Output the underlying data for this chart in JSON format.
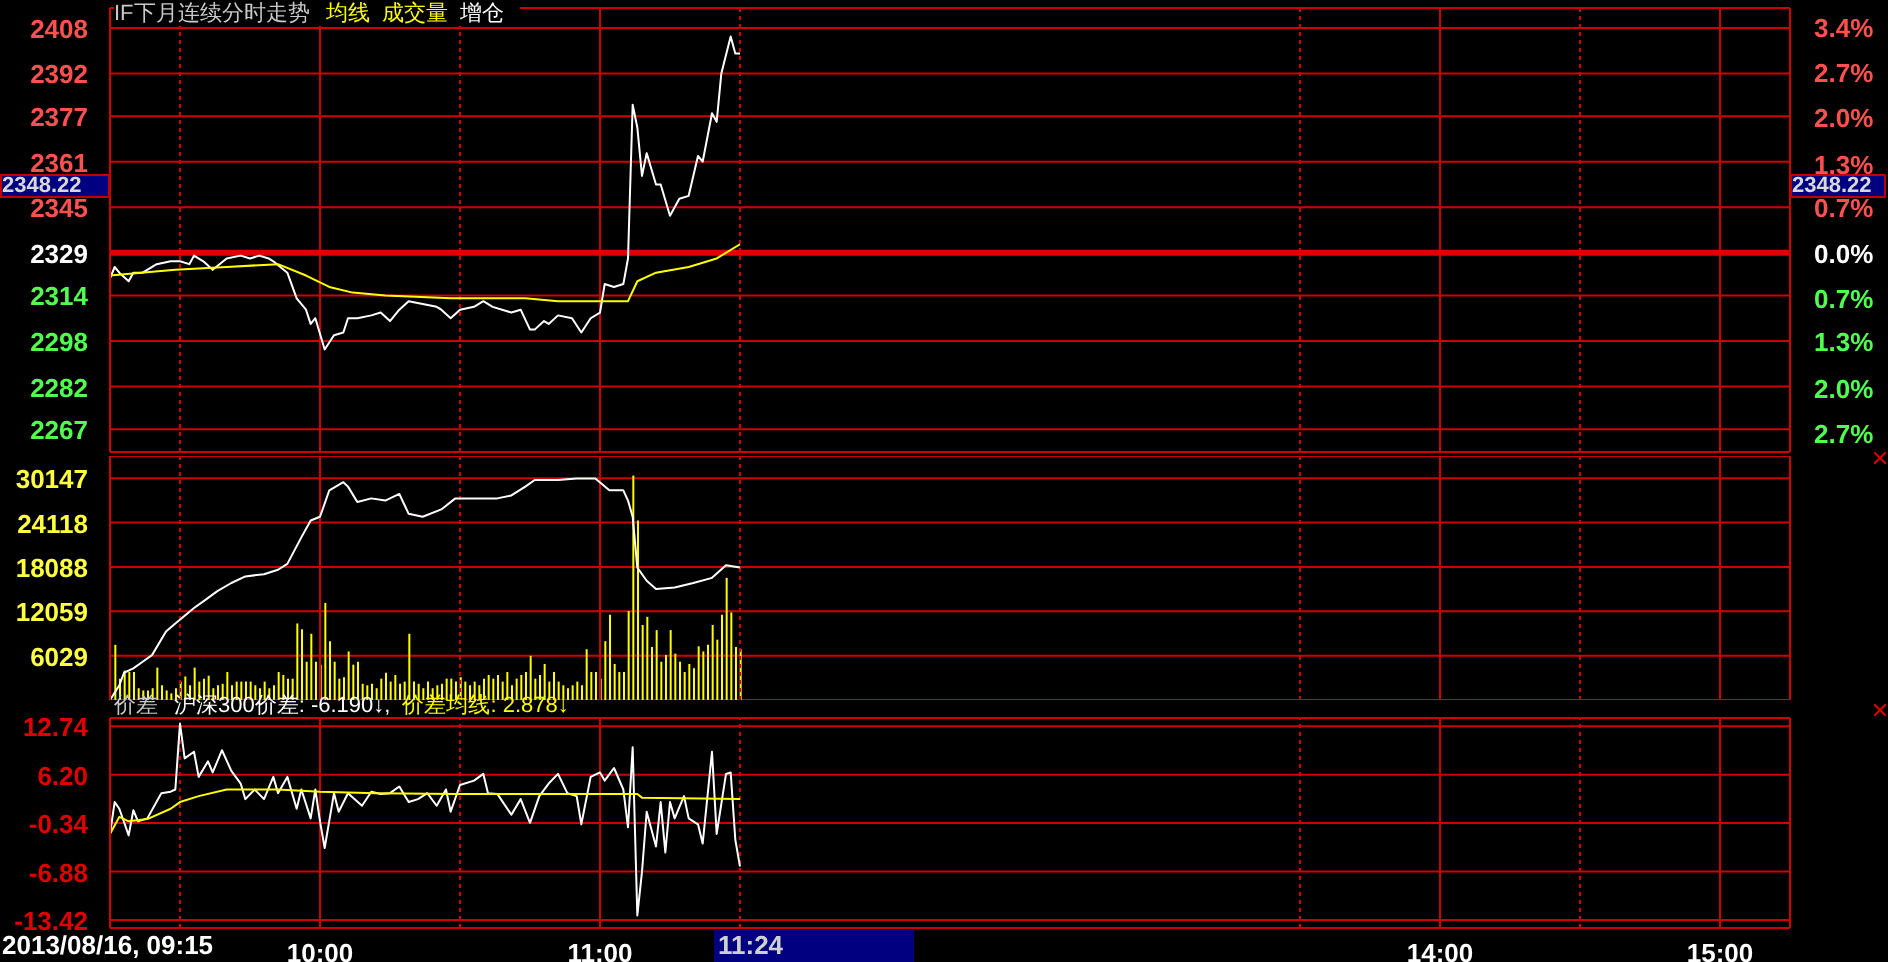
{
  "chart_data": [
    {
      "type": "line",
      "title": "IF下月连续分时走势",
      "xlim": [
        "2013-08-16T09:15",
        "2013-08-16T15:15"
      ],
      "ylim": [
        2259,
        2415
      ],
      "yticks": [
        2408,
        2392,
        2377,
        2361,
        2345,
        2329,
        2314,
        2298,
        2282,
        2267
      ],
      "y2lim": [
        -3.01,
        3.69
      ],
      "y2ticks": [
        {
          "value": 3.4,
          "label": "3.4%"
        },
        {
          "value": 2.72,
          "label": "2.7%"
        },
        {
          "value": 2.04,
          "label": "2.0%"
        },
        {
          "value": 1.34,
          "label": "1.3%"
        },
        {
          "value": 0.68,
          "label": "0.7%"
        },
        {
          "value": 0,
          "label": "0.0%"
        },
        {
          "value": -0.68,
          "label": "0.7%"
        },
        {
          "value": -1.34,
          "label": "1.3%"
        },
        {
          "value": -2.04,
          "label": "2.0%"
        },
        {
          "value": -2.72,
          "label": "2.7%"
        }
      ],
      "ref_lines": [
        {
          "axis": "y",
          "value": 2329,
          "color": "#e00000"
        }
      ],
      "annotations": [
        "2348.22"
      ],
      "grid": true,
      "legend": "top left",
      "tick_labels": "y",
      "series": [
        {
          "color": "#ffffff",
          "x": [
            "2013-08-16T09:15",
            "2013-08-16T09:16",
            "2013-08-16T09:17",
            "2013-08-16T09:19",
            "2013-08-16T09:20",
            "2013-08-16T09:22",
            "2013-08-16T09:25",
            "2013-08-16T09:28",
            "2013-08-16T09:30",
            "2013-08-16T09:32",
            "2013-08-16T09:33",
            "2013-08-16T09:35",
            "2013-08-16T09:37",
            "2013-08-16T09:40",
            "2013-08-16T09:43",
            "2013-08-16T09:45",
            "2013-08-16T09:47",
            "2013-08-16T09:49",
            "2013-08-16T09:50",
            "2013-08-16T09:53",
            "2013-08-16T09:55",
            "2013-08-16T09:57",
            "2013-08-16T09:58",
            "2013-08-16T09:59",
            "2013-08-16T10:01",
            "2013-08-16T10:03",
            "2013-08-16T10:05",
            "2013-08-16T10:06",
            "2013-08-16T10:08",
            "2013-08-16T10:11",
            "2013-08-16T10:13",
            "2013-08-16T10:15",
            "2013-08-16T10:17",
            "2013-08-16T10:19",
            "2013-08-16T10:22",
            "2013-08-16T10:25",
            "2013-08-16T10:26",
            "2013-08-16T10:28",
            "2013-08-16T10:30",
            "2013-08-16T10:33",
            "2013-08-16T10:35",
            "2013-08-16T10:37",
            "2013-08-16T10:41",
            "2013-08-16T10:43",
            "2013-08-16T10:45",
            "2013-08-16T10:46",
            "2013-08-16T10:48",
            "2013-08-16T10:49",
            "2013-08-16T10:51",
            "2013-08-16T10:54",
            "2013-08-16T10:56",
            "2013-08-16T10:58",
            "2013-08-16T11:00",
            "2013-08-16T11:01",
            "2013-08-16T11:03",
            "2013-08-16T11:05",
            "2013-08-16T11:06",
            "2013-08-16T11:07",
            "2013-08-16T11:08",
            "2013-08-16T11:09",
            "2013-08-16T11:10",
            "2013-08-16T11:12",
            "2013-08-16T11:13",
            "2013-08-16T11:15",
            "2013-08-16T11:17",
            "2013-08-16T11:19",
            "2013-08-16T11:21",
            "2013-08-16T11:22",
            "2013-08-16T11:24",
            "2013-08-16T11:25",
            "2013-08-16T11:26",
            "2013-08-16T11:28",
            "2013-08-16T11:29",
            "2013-08-16T11:30"
          ],
          "values": [
            2320,
            2324,
            2322,
            2319,
            2322,
            2322,
            2325,
            2326,
            2326,
            2325,
            2328,
            2326,
            2323,
            2327,
            2328,
            2327,
            2328,
            2327,
            2326,
            2322,
            2313,
            2309,
            2304,
            2306,
            2295,
            2300,
            2301,
            2306,
            2306,
            2307,
            2308,
            2305,
            2309,
            2312,
            2311,
            2310,
            2309,
            2306,
            2309,
            2310,
            2312,
            2310,
            2308,
            2309,
            2302,
            2302,
            2305,
            2304,
            2307,
            2306,
            2301,
            2306,
            2308,
            2318,
            2317,
            2318,
            2327,
            2381,
            2373,
            2356,
            2364,
            2353,
            2353,
            2342,
            2348,
            2349,
            2363,
            2361,
            2378,
            2375,
            2392,
            2405,
            2399,
            2399
          ]
        },
        {
          "name": "均线",
          "color": "#ffff00",
          "x": [
            "2013-08-16T09:15",
            "2013-08-16T09:29",
            "2013-08-16T09:40",
            "2013-08-16T09:51",
            "2013-08-16T09:57",
            "2013-08-16T10:02",
            "2013-08-16T10:07",
            "2013-08-16T10:14",
            "2013-08-16T10:28",
            "2013-08-16T10:44",
            "2013-08-16T10:51",
            "2013-08-16T11:06",
            "2013-08-16T11:08",
            "2013-08-16T11:12",
            "2013-08-16T11:19",
            "2013-08-16T11:25",
            "2013-08-16T11:30"
          ],
          "values": [
            2321,
            2323,
            2324,
            2325,
            2321,
            2317,
            2315,
            2314,
            2313,
            2313,
            2312,
            2312,
            2319,
            2322,
            2324,
            2327,
            2332
          ]
        }
      ]
    },
    {
      "type": "bar",
      "xlim": [
        "2013-08-16T09:15",
        "2013-08-16T15:15"
      ],
      "ylim": [
        0,
        33160
      ],
      "yticks": [
        30147,
        24118,
        18088,
        12059,
        6029
      ],
      "grid": true,
      "legend": "top left",
      "tick_labels": "y",
      "x": [
        "2013-08-16T09:16",
        "2013-08-16T09:17",
        "2013-08-16T09:18",
        "2013-08-16T09:19",
        "2013-08-16T09:20",
        "2013-08-16T09:21",
        "2013-08-16T09:22",
        "2013-08-16T09:23",
        "2013-08-16T09:24",
        "2013-08-16T09:25",
        "2013-08-16T09:26",
        "2013-08-16T09:27",
        "2013-08-16T09:28",
        "2013-08-16T09:29",
        "2013-08-16T09:30",
        "2013-08-16T09:31",
        "2013-08-16T09:32",
        "2013-08-16T09:33",
        "2013-08-16T09:34",
        "2013-08-16T09:35",
        "2013-08-16T09:36",
        "2013-08-16T09:37",
        "2013-08-16T09:38",
        "2013-08-16T09:39",
        "2013-08-16T09:40",
        "2013-08-16T09:41",
        "2013-08-16T09:42",
        "2013-08-16T09:43",
        "2013-08-16T09:44",
        "2013-08-16T09:45",
        "2013-08-16T09:46",
        "2013-08-16T09:47",
        "2013-08-16T09:48",
        "2013-08-16T09:49",
        "2013-08-16T09:50",
        "2013-08-16T09:51",
        "2013-08-16T09:52",
        "2013-08-16T09:53",
        "2013-08-16T09:54",
        "2013-08-16T09:55",
        "2013-08-16T09:56",
        "2013-08-16T09:57",
        "2013-08-16T09:58",
        "2013-08-16T09:59",
        "2013-08-16T10:00",
        "2013-08-16T10:01",
        "2013-08-16T10:02",
        "2013-08-16T10:03",
        "2013-08-16T10:04",
        "2013-08-16T10:05",
        "2013-08-16T10:06",
        "2013-08-16T10:07",
        "2013-08-16T10:08",
        "2013-08-16T10:09",
        "2013-08-16T10:10",
        "2013-08-16T10:11",
        "2013-08-16T10:12",
        "2013-08-16T10:13",
        "2013-08-16T10:14",
        "2013-08-16T10:15",
        "2013-08-16T10:16",
        "2013-08-16T10:17",
        "2013-08-16T10:18",
        "2013-08-16T10:19",
        "2013-08-16T10:20",
        "2013-08-16T10:21",
        "2013-08-16T10:22",
        "2013-08-16T10:23",
        "2013-08-16T10:24",
        "2013-08-16T10:25",
        "2013-08-16T10:26",
        "2013-08-16T10:27",
        "2013-08-16T10:28",
        "2013-08-16T10:29",
        "2013-08-16T10:30",
        "2013-08-16T10:31",
        "2013-08-16T10:32",
        "2013-08-16T10:33",
        "2013-08-16T10:34",
        "2013-08-16T10:35",
        "2013-08-16T10:36",
        "2013-08-16T10:37",
        "2013-08-16T10:38",
        "2013-08-16T10:39",
        "2013-08-16T10:40",
        "2013-08-16T10:41",
        "2013-08-16T10:42",
        "2013-08-16T10:43",
        "2013-08-16T10:44",
        "2013-08-16T10:45",
        "2013-08-16T10:46",
        "2013-08-16T10:47",
        "2013-08-16T10:48",
        "2013-08-16T10:49",
        "2013-08-16T10:50",
        "2013-08-16T10:51",
        "2013-08-16T10:52",
        "2013-08-16T10:53",
        "2013-08-16T10:54",
        "2013-08-16T10:55",
        "2013-08-16T10:56",
        "2013-08-16T10:57",
        "2013-08-16T10:58",
        "2013-08-16T10:59",
        "2013-08-16T11:00",
        "2013-08-16T11:01",
        "2013-08-16T11:02",
        "2013-08-16T11:03",
        "2013-08-16T11:04",
        "2013-08-16T11:05",
        "2013-08-16T11:06",
        "2013-08-16T11:07",
        "2013-08-16T11:08",
        "2013-08-16T11:09",
        "2013-08-16T11:10",
        "2013-08-16T11:11",
        "2013-08-16T11:12",
        "2013-08-16T11:13",
        "2013-08-16T11:14",
        "2013-08-16T11:15",
        "2013-08-16T11:16",
        "2013-08-16T11:17",
        "2013-08-16T11:18",
        "2013-08-16T11:19",
        "2013-08-16T11:20",
        "2013-08-16T11:21",
        "2013-08-16T11:22",
        "2013-08-16T11:23",
        "2013-08-16T11:24",
        "2013-08-16T11:25",
        "2013-08-16T11:26",
        "2013-08-16T11:27",
        "2013-08-16T11:28",
        "2013-08-16T11:29",
        "2013-08-16T11:30"
      ],
      "series": [
        {
          "name": "成交量",
          "color": "#ffff00",
          "values": [
            7500,
            2900,
            4000,
            3800,
            3800,
            1600,
            1300,
            1300,
            1600,
            4400,
            2000,
            1300,
            900,
            1600,
            2500,
            3200,
            2000,
            4400,
            2500,
            2900,
            3300,
            1600,
            2000,
            2200,
            3800,
            2000,
            2500,
            2500,
            2500,
            2500,
            2000,
            1600,
            2500,
            1600,
            2000,
            3800,
            3400,
            2900,
            2900,
            10400,
            9600,
            5200,
            9000,
            5200,
            4800,
            13200,
            8000,
            5200,
            2900,
            3100,
            6600,
            4800,
            5200,
            2200,
            2000,
            2200,
            1600,
            2900,
            3700,
            2500,
            3400,
            2200,
            2500,
            9000,
            2500,
            2200,
            1600,
            2500,
            1600,
            2000,
            2200,
            2900,
            2900,
            2500,
            3100,
            2500,
            2000,
            2500,
            2000,
            2900,
            3400,
            2900,
            3400,
            2500,
            3800,
            2000,
            2900,
            3400,
            3800,
            6000,
            2900,
            3400,
            4900,
            2500,
            3800,
            2500,
            2000,
            1600,
            2000,
            2500,
            2000,
            6900,
            3800,
            3800,
            2900,
            8000,
            11600,
            4900,
            3800,
            3800,
            12100,
            30500,
            24400,
            10200,
            11300,
            7200,
            9500,
            5200,
            6100,
            9500,
            6300,
            5200,
            3800,
            4900,
            4300,
            7300,
            6600,
            7500,
            10200,
            8200,
            11600,
            16600,
            11900,
            7200,
            6900
          ]
        },
        {
          "name": "增仓",
          "type": "line",
          "color": "#ffffff",
          "x": [
            "2013-08-16T09:15",
            "2013-08-16T09:17",
            "2013-08-16T09:18",
            "2013-08-16T09:20",
            "2013-08-16T09:22",
            "2013-08-16T09:24",
            "2013-08-16T09:27",
            "2013-08-16T09:29",
            "2013-08-16T09:33",
            "2013-08-16T09:35",
            "2013-08-16T09:38",
            "2013-08-16T09:41",
            "2013-08-16T09:44",
            "2013-08-16T09:48",
            "2013-08-16T09:51",
            "2013-08-16T09:53",
            "2013-08-16T09:56",
            "2013-08-16T09:58",
            "2013-08-16T10:00",
            "2013-08-16T10:02",
            "2013-08-16T10:05",
            "2013-08-16T10:06",
            "2013-08-16T10:08",
            "2013-08-16T10:11",
            "2013-08-16T10:14",
            "2013-08-16T10:17",
            "2013-08-16T10:19",
            "2013-08-16T10:22",
            "2013-08-16T10:26",
            "2013-08-16T10:29",
            "2013-08-16T10:34",
            "2013-08-16T10:38",
            "2013-08-16T10:41",
            "2013-08-16T10:44",
            "2013-08-16T10:46",
            "2013-08-16T10:51",
            "2013-08-16T10:55",
            "2013-08-16T10:59",
            "2013-08-16T11:02",
            "2013-08-16T11:05",
            "2013-08-16T11:06",
            "2013-08-16T11:07",
            "2013-08-16T11:08",
            "2013-08-16T11:10",
            "2013-08-16T11:12",
            "2013-08-16T11:16",
            "2013-08-16T11:20",
            "2013-08-16T11:24",
            "2013-08-16T11:27",
            "2013-08-16T11:30"
          ],
          "values": [
            0,
            2000,
            3700,
            4300,
            5200,
            6100,
            9300,
            10400,
            12500,
            13400,
            14800,
            15900,
            16800,
            17100,
            17700,
            18500,
            22100,
            24400,
            24900,
            28500,
            29600,
            29000,
            26900,
            27400,
            27100,
            28000,
            25300,
            24900,
            25900,
            27400,
            27400,
            27400,
            27800,
            29000,
            29900,
            29900,
            30100,
            30100,
            28500,
            28500,
            27100,
            24900,
            18000,
            16200,
            15100,
            15300,
            15900,
            16600,
            18300,
            18000
          ]
        }
      ]
    },
    {
      "type": "line",
      "title": "价差",
      "xlim": [
        "2013-08-16T09:15",
        "2013-08-16T15:15"
      ],
      "xticks": [
        {
          "value": "2013-08-16T09:15",
          "label": null
        },
        {
          "value": "2013-08-16T09:30",
          "label": null
        },
        {
          "value": "2013-08-16T10:00",
          "label": "10:00"
        },
        {
          "value": "2013-08-16T10:30",
          "label": null
        },
        {
          "value": "2013-08-16T11:00",
          "label": "11:00"
        },
        {
          "value": "2013-08-16T11:30",
          "label": null
        },
        {
          "value": "2013-08-16T13:30",
          "label": null
        },
        {
          "value": "2013-08-16T14:00",
          "label": "14:00"
        },
        {
          "value": "2013-08-16T14:30",
          "label": null
        },
        {
          "value": "2013-08-16T15:00",
          "label": "15:00"
        }
      ],
      "ylim": [
        -14.5,
        13.85
      ],
      "yticks": [
        12.74,
        {
          "value": 6.2,
          "label": "6.20"
        },
        -0.34,
        -6.88,
        -13.42
      ],
      "annotations": [
        ": -6.190↓,",
        ": 2.878↓",
        "2013/08/16, 09:15",
        "11:24"
      ],
      "grid": true,
      "legend": "top left",
      "series": [
        {
          "name": "沪深300价差",
          "color": "#ffffff",
          "x": [
            "2013-08-16T09:15",
            "2013-08-16T09:16",
            "2013-08-16T09:17",
            "2013-08-16T09:19",
            "2013-08-16T09:20",
            "2013-08-16T09:21",
            "2013-08-16T09:23",
            "2013-08-16T09:26",
            "2013-08-16T09:28",
            "2013-08-16T09:29",
            "2013-08-16T09:30",
            "2013-08-16T09:31",
            "2013-08-16T09:33",
            "2013-08-16T09:34",
            "2013-08-16T09:36",
            "2013-08-16T09:37",
            "2013-08-16T09:39",
            "2013-08-16T09:41",
            "2013-08-16T09:43",
            "2013-08-16T09:44",
            "2013-08-16T09:46",
            "2013-08-16T09:48",
            "2013-08-16T09:50",
            "2013-08-16T09:51",
            "2013-08-16T09:53",
            "2013-08-16T09:55",
            "2013-08-16T09:56",
            "2013-08-16T09:58",
            "2013-08-16T09:59",
            "2013-08-16T10:00",
            "2013-08-16T10:01",
            "2013-08-16T10:03",
            "2013-08-16T10:04",
            "2013-08-16T10:06",
            "2013-08-16T10:09",
            "2013-08-16T10:11",
            "2013-08-16T10:13",
            "2013-08-16T10:15",
            "2013-08-16T10:17",
            "2013-08-16T10:19",
            "2013-08-16T10:21",
            "2013-08-16T10:23",
            "2013-08-16T10:25",
            "2013-08-16T10:27",
            "2013-08-16T10:28",
            "2013-08-16T10:30",
            "2013-08-16T10:33",
            "2013-08-16T10:35",
            "2013-08-16T10:36",
            "2013-08-16T10:38",
            "2013-08-16T10:41",
            "2013-08-16T10:43",
            "2013-08-16T10:45",
            "2013-08-16T10:47",
            "2013-08-16T10:49",
            "2013-08-16T10:51",
            "2013-08-16T10:53",
            "2013-08-16T10:55",
            "2013-08-16T10:56",
            "2013-08-16T10:58",
            "2013-08-16T11:00",
            "2013-08-16T11:01",
            "2013-08-16T11:03",
            "2013-08-16T11:05",
            "2013-08-16T11:06",
            "2013-08-16T11:07",
            "2013-08-16T11:08",
            "2013-08-16T11:09",
            "2013-08-16T11:10",
            "2013-08-16T11:12",
            "2013-08-16T11:13",
            "2013-08-16T11:14",
            "2013-08-16T11:15",
            "2013-08-16T11:16",
            "2013-08-16T11:18",
            "2013-08-16T11:19",
            "2013-08-16T11:21",
            "2013-08-16T11:22",
            "2013-08-16T11:24",
            "2013-08-16T11:25",
            "2013-08-16T11:27",
            "2013-08-16T11:28",
            "2013-08-16T11:29",
            "2013-08-16T11:30"
          ],
          "values": [
            -1.8,
            2.5,
            1.6,
            -2.0,
            1.4,
            -0.1,
            0.3,
            3.7,
            3.9,
            4.2,
            13.1,
            8.4,
            9.3,
            5.9,
            8.0,
            6.5,
            9.5,
            6.7,
            5.0,
            2.9,
            4.2,
            2.9,
            5.9,
            3.7,
            5.9,
            1.6,
            4.2,
            0.3,
            4.2,
            -0.1,
            -3.7,
            3.7,
            1.2,
            3.7,
            2.0,
            3.9,
            3.6,
            3.7,
            4.6,
            2.5,
            2.9,
            3.7,
            2.0,
            4.2,
            1.2,
            4.8,
            5.4,
            6.3,
            3.7,
            3.6,
            0.8,
            2.9,
            -0.3,
            3.3,
            5.0,
            6.3,
            3.7,
            3.3,
            -0.5,
            5.9,
            6.5,
            5.4,
            7.1,
            4.2,
            -0.9,
            9.9,
            -12.8,
            -6.9,
            1.2,
            -3.5,
            2.5,
            -4.3,
            2.5,
            0.3,
            3.3,
            0.3,
            -0.5,
            -3.1,
            9.3,
            -1.8,
            6.3,
            6.5,
            -2.6,
            -6.2
          ]
        },
        {
          "name": "价差均线",
          "color": "#ffff00",
          "x": [
            "2013-08-16T09:15",
            "2013-08-16T09:17",
            "2013-08-16T09:19",
            "2013-08-16T09:23",
            "2013-08-16T09:28",
            "2013-08-16T09:30",
            "2013-08-16T09:34",
            "2013-08-16T09:40",
            "2013-08-16T09:51",
            "2013-08-16T10:00",
            "2013-08-16T10:12",
            "2013-08-16T10:29",
            "2013-08-16T11:08",
            "2013-08-16T11:09",
            "2013-08-16T11:30"
          ],
          "values": [
            -1.8,
            0.5,
            -0.1,
            0.2,
            1.6,
            2.5,
            3.3,
            4.2,
            4.2,
            3.9,
            3.7,
            3.6,
            3.6,
            3.1,
            2.9
          ]
        }
      ]
    }
  ]
}
